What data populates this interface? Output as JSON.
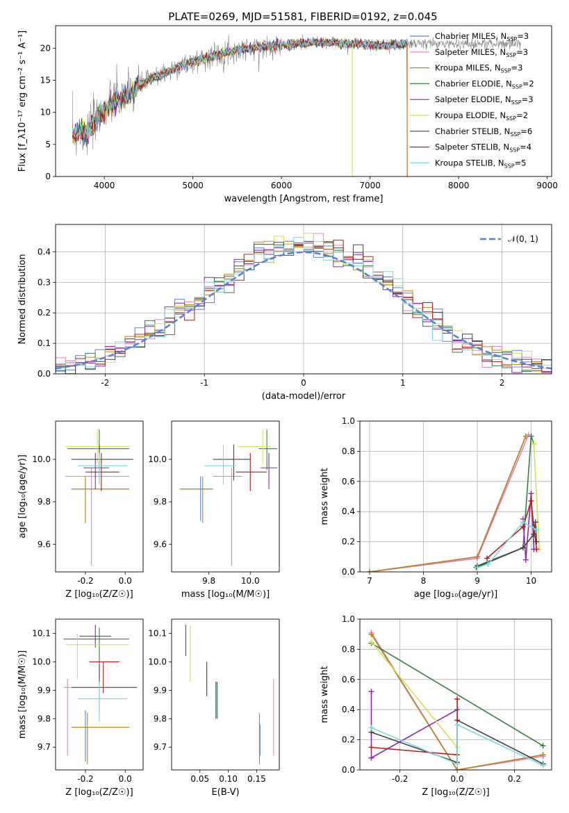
{
  "title": "PLATE=0269, MJD=51581, FIBERID=0192, z=0.045",
  "colors": {
    "chab_miles": "#5b7fd6",
    "salp_miles": "#e77fc4",
    "krou_miles": "#b8871b",
    "chab_elodie": "#3a7d44",
    "salp_elodie": "#8e24aa",
    "krou_elodie": "#d4e157",
    "chab_stelib": "#444444",
    "salp_stelib": "#b71c1c",
    "krou_stelib": "#7fd6dc",
    "spectrum": "#808080",
    "model_accent": "#e07b39"
  },
  "chart_data": [
    {
      "id": "spectrum",
      "type": "line",
      "xlabel": "wavelength [Angstrom, rest frame]",
      "ylabel": "Flux [f_λ10⁻¹⁷ erg cm⁻² s⁻¹ A⁻¹]",
      "xlim": [
        3450,
        9050
      ],
      "ylim": [
        0,
        23.5
      ],
      "xticks": [
        4000,
        5000,
        6000,
        7000,
        8000,
        9000
      ],
      "yticks": [
        0,
        5,
        10,
        15,
        20
      ],
      "grid": false,
      "legend_position": "right",
      "continuum": {
        "x": [
          3650,
          3700,
          3800,
          3900,
          4000,
          4100,
          4200,
          4300,
          4400,
          4500,
          4700,
          4900,
          5100,
          5300,
          5500,
          5700,
          5900,
          6100,
          6300,
          6500,
          6700,
          6900,
          7100,
          7300,
          7420
        ],
        "y": [
          6.5,
          7.0,
          6.5,
          8.5,
          10.5,
          11.5,
          12.3,
          13.0,
          14.2,
          15.0,
          16.2,
          17.4,
          18.3,
          19.0,
          19.7,
          20.0,
          20.4,
          20.6,
          20.8,
          20.9,
          20.8,
          20.6,
          20.4,
          20.5,
          20.7
        ]
      },
      "series": [
        {
          "name": "Chabrier MILES, N_SSP=3",
          "label_main": "Chabrier MILES, N",
          "label_sub": "SSP",
          "label_end": "=3",
          "color_key": "chab_miles"
        },
        {
          "name": "Salpeter MILES, N_SSP=3",
          "label_main": "Salpeter MILES, N",
          "label_sub": "SSP",
          "label_end": "=3",
          "color_key": "salp_miles"
        },
        {
          "name": "Kroupa MILES, N_SSP=3",
          "label_main": "Kroupa MILES, N",
          "label_sub": "SSP",
          "label_end": "=3",
          "color_key": "krou_miles"
        },
        {
          "name": "Chabrier ELODIE, N_SSP=2",
          "label_main": "Chabrier ELODIE, N",
          "label_sub": "SSP",
          "label_end": "=2",
          "color_key": "chab_elodie"
        },
        {
          "name": "Salpeter ELODIE, N_SSP=3",
          "label_main": "Salpeter ELODIE, N",
          "label_sub": "SSP",
          "label_end": "=3",
          "color_key": "salp_elodie"
        },
        {
          "name": "Kroupa ELODIE, N_SSP=2",
          "label_main": "Kroupa ELODIE, N",
          "label_sub": "SSP",
          "label_end": "=2",
          "color_key": "krou_elodie"
        },
        {
          "name": "Chabrier STELIB, N_SSP=6",
          "label_main": "Chabrier STELIB, N",
          "label_sub": "SSP",
          "label_end": "=6",
          "color_key": "chab_stelib"
        },
        {
          "name": "Salpeter STELIB, N_SSP=4",
          "label_main": "Salpeter STELIB, N",
          "label_sub": "SSP",
          "label_end": "=4",
          "color_key": "salp_stelib"
        },
        {
          "name": "Kroupa STELIB, N_SSP=5",
          "label_main": "Kroupa STELIB, N",
          "label_sub": "SSP",
          "label_end": "=5",
          "color_key": "krou_stelib"
        }
      ]
    },
    {
      "id": "residuals",
      "type": "histogram",
      "xlabel": "(data-model)/error",
      "ylabel": "Normed distribution",
      "xlim": [
        -2.5,
        2.5
      ],
      "ylim": [
        0,
        0.49
      ],
      "xticks": [
        -2,
        -1,
        0,
        1,
        2
      ],
      "yticks": [
        0.0,
        0.1,
        0.2,
        0.3,
        0.4
      ],
      "grid": true,
      "legend_position": "top-right",
      "legend": "𝒩(0, 1)",
      "bin_width": 0.1,
      "approx_density_bins": {
        "centers": [
          -2.45,
          -2.35,
          -2.25,
          -2.15,
          -2.05,
          -1.95,
          -1.85,
          -1.75,
          -1.65,
          -1.55,
          -1.45,
          -1.35,
          -1.25,
          -1.15,
          -1.05,
          -0.95,
          -0.85,
          -0.75,
          -0.65,
          -0.55,
          -0.45,
          -0.35,
          -0.25,
          -0.15,
          -0.05,
          0.05,
          0.15,
          0.25,
          0.35,
          0.45,
          0.55,
          0.65,
          0.75,
          0.85,
          0.95,
          1.05,
          1.15,
          1.25,
          1.35,
          1.45,
          1.55,
          1.65,
          1.75,
          1.85,
          1.95,
          2.05,
          2.15,
          2.25,
          2.35,
          2.45
        ],
        "values": [
          0.02,
          0.03,
          0.04,
          0.04,
          0.05,
          0.06,
          0.08,
          0.1,
          0.12,
          0.13,
          0.15,
          0.18,
          0.21,
          0.22,
          0.24,
          0.28,
          0.29,
          0.31,
          0.34,
          0.36,
          0.4,
          0.41,
          0.42,
          0.42,
          0.42,
          0.42,
          0.42,
          0.41,
          0.4,
          0.38,
          0.37,
          0.35,
          0.32,
          0.3,
          0.27,
          0.23,
          0.21,
          0.19,
          0.17,
          0.14,
          0.11,
          0.1,
          0.08,
          0.06,
          0.06,
          0.05,
          0.04,
          0.04,
          0.03,
          0.02
        ]
      }
    },
    {
      "id": "age_vs_Z",
      "type": "errorbar",
      "xlabel": "Z [log₁₀(Z/Z☉)]",
      "ylabel": "age  [log₁₀(age/yr)]",
      "xlim": [
        -0.35,
        0.09
      ],
      "ylim": [
        9.47,
        10.18
      ],
      "xticks": [
        -0.2,
        0.0
      ],
      "yticks": [
        9.6,
        9.8,
        10.0
      ],
      "points": [
        {
          "color_key": "chab_miles",
          "x": -0.2,
          "xlo": -0.27,
          "xhi": 0.02,
          "y": 9.86,
          "ylo": 9.71,
          "yhi": 9.92
        },
        {
          "color_key": "salp_miles",
          "x": -0.17,
          "xlo": -0.3,
          "xhi": 0.02,
          "y": 9.92,
          "ylo": 9.5,
          "yhi": 9.96
        },
        {
          "color_key": "krou_miles",
          "x": -0.2,
          "xlo": -0.27,
          "xhi": 0.02,
          "y": 9.86,
          "ylo": 9.7,
          "yhi": 9.92
        },
        {
          "color_key": "chab_elodie",
          "x": -0.13,
          "xlo": -0.29,
          "xhi": 0.02,
          "y": 10.05,
          "ylo": 9.95,
          "yhi": 10.14
        },
        {
          "color_key": "salp_elodie",
          "x": -0.15,
          "xlo": -0.21,
          "xhi": -0.08,
          "y": 9.96,
          "ylo": 9.86,
          "yhi": 10.03
        },
        {
          "color_key": "krou_elodie",
          "x": -0.14,
          "xlo": -0.3,
          "xhi": 0.02,
          "y": 10.06,
          "ylo": 9.98,
          "yhi": 10.14
        },
        {
          "color_key": "chab_stelib",
          "x": -0.13,
          "xlo": -0.27,
          "xhi": 0.04,
          "y": 10.0,
          "ylo": 9.9,
          "yhi": 10.07
        },
        {
          "color_key": "salp_stelib",
          "x": -0.12,
          "xlo": -0.2,
          "xhi": -0.03,
          "y": 9.94,
          "ylo": 9.85,
          "yhi": 10.03
        },
        {
          "color_key": "krou_stelib",
          "x": -0.13,
          "xlo": -0.24,
          "xhi": 0.01,
          "y": 9.97,
          "ylo": 9.88,
          "yhi": 10.03
        }
      ]
    },
    {
      "id": "age_vs_mass",
      "type": "errorbar",
      "xlabel": "mass [log₁₀(M/M☉)]",
      "ylabel": "",
      "xlim": [
        9.62,
        10.14
      ],
      "ylim": [
        9.47,
        10.18
      ],
      "xticks": [
        9.8,
        10.0
      ],
      "yticks": [
        9.6,
        9.8,
        10.0
      ],
      "points": [
        {
          "color_key": "chab_miles",
          "x": 9.76,
          "xlo": 9.66,
          "xhi": 9.82,
          "y": 9.86,
          "ylo": 9.71,
          "yhi": 9.92
        },
        {
          "color_key": "salp_miles",
          "x": 9.91,
          "xlo": 9.82,
          "xhi": 9.96,
          "y": 9.92,
          "ylo": 9.5,
          "yhi": 9.96
        },
        {
          "color_key": "krou_miles",
          "x": 9.77,
          "xlo": 9.66,
          "xhi": 9.82,
          "y": 9.86,
          "ylo": 9.7,
          "yhi": 9.92
        },
        {
          "color_key": "chab_elodie",
          "x": 10.08,
          "xlo": 10.04,
          "xhi": 10.13,
          "y": 10.05,
          "ylo": 9.95,
          "yhi": 10.14
        },
        {
          "color_key": "salp_elodie",
          "x": 10.09,
          "xlo": 10.05,
          "xhi": 10.13,
          "y": 9.96,
          "ylo": 9.86,
          "yhi": 10.03
        },
        {
          "color_key": "krou_elodie",
          "x": 10.06,
          "xlo": 9.94,
          "xhi": 10.1,
          "y": 10.06,
          "ylo": 9.98,
          "yhi": 10.14
        },
        {
          "color_key": "chab_stelib",
          "x": 9.92,
          "xlo": 9.82,
          "xhi": 10.0,
          "y": 10.0,
          "ylo": 9.9,
          "yhi": 10.07
        },
        {
          "color_key": "salp_stelib",
          "x": 10.0,
          "xlo": 9.93,
          "xhi": 10.08,
          "y": 9.94,
          "ylo": 9.85,
          "yhi": 10.03
        },
        {
          "color_key": "krou_stelib",
          "x": 9.87,
          "xlo": 9.78,
          "xhi": 9.93,
          "y": 9.97,
          "ylo": 9.88,
          "yhi": 10.07
        }
      ]
    },
    {
      "id": "weight_vs_age",
      "type": "line",
      "xlabel": "age  [log₁₀(age/yr)]",
      "ylabel": "mass weight",
      "xlim": [
        6.82,
        10.38
      ],
      "ylim": [
        0,
        1.0
      ],
      "xticks": [
        7,
        8,
        9,
        10
      ],
      "yticks": [
        0.0,
        0.2,
        0.4,
        0.6,
        0.8,
        1.0
      ],
      "grid": true,
      "series": [
        {
          "color_key": "chab_miles",
          "x": [
            7.0,
            9.0,
            9.9
          ],
          "y": [
            0.0,
            0.1,
            0.9
          ]
        },
        {
          "color_key": "salp_miles",
          "x": [
            7.0,
            9.0,
            9.95
          ],
          "y": [
            0.0,
            0.09,
            0.91
          ]
        },
        {
          "color_key": "krou_miles",
          "x": [
            7.0,
            9.0,
            9.9
          ],
          "y": [
            0.0,
            0.1,
            0.9
          ]
        },
        {
          "color_key": "chab_elodie",
          "x": [
            9.0,
            9.85,
            10.0,
            10.05
          ],
          "y": [
            0.04,
            0.16,
            0.9,
            0.85
          ]
        },
        {
          "color_key": "salp_elodie",
          "x": [
            9.85,
            9.9,
            10.0,
            10.05
          ],
          "y": [
            0.35,
            0.08,
            0.52,
            0.15
          ]
        },
        {
          "color_key": "krou_elodie",
          "x": [
            10.05,
            10.15
          ],
          "y": [
            0.85,
            0.15
          ]
        },
        {
          "color_key": "chab_stelib",
          "x": [
            8.98,
            9.85,
            10.05,
            10.08,
            10.1
          ],
          "y": [
            0.03,
            0.16,
            0.25,
            0.33,
            0.2
          ]
        },
        {
          "color_key": "salp_stelib",
          "x": [
            9.18,
            9.85,
            10.0,
            10.05,
            10.1
          ],
          "y": [
            0.09,
            0.3,
            0.47,
            0.3,
            0.15
          ]
        },
        {
          "color_key": "krou_stelib",
          "x": [
            9.0,
            9.2,
            9.85,
            10.0,
            10.1
          ],
          "y": [
            0.03,
            0.05,
            0.33,
            0.3,
            0.28
          ]
        }
      ]
    },
    {
      "id": "mass_vs_Z",
      "type": "errorbar",
      "xlabel": "Z [log₁₀(Z/Z☉)]",
      "ylabel": "mass [log₁₀(M/M☉)]",
      "xlim": [
        -0.35,
        0.09
      ],
      "ylim": [
        9.62,
        10.15
      ],
      "xticks": [
        -0.2,
        0.0
      ],
      "yticks": [
        9.7,
        9.8,
        9.9,
        10.0,
        10.1
      ],
      "points": [
        {
          "color_key": "chab_miles",
          "x": -0.2,
          "xlo": -0.27,
          "xhi": 0.02,
          "y": 9.77,
          "ylo": 9.65,
          "yhi": 9.83
        },
        {
          "color_key": "salp_miles",
          "x": -0.29,
          "xlo": -0.31,
          "xhi": -0.26,
          "y": 9.91,
          "ylo": 9.67,
          "yhi": 9.94
        },
        {
          "color_key": "krou_miles",
          "x": -0.19,
          "xlo": -0.27,
          "xhi": 0.02,
          "y": 9.77,
          "ylo": 9.64,
          "yhi": 9.82
        },
        {
          "color_key": "chab_elodie",
          "x": -0.13,
          "xlo": -0.31,
          "xhi": 0.02,
          "y": 10.08,
          "ylo": 9.94,
          "yhi": 10.12
        },
        {
          "color_key": "salp_elodie",
          "x": -0.15,
          "xlo": -0.23,
          "xhi": -0.07,
          "y": 10.09,
          "ylo": 10.05,
          "yhi": 10.13
        },
        {
          "color_key": "krou_elodie",
          "x": -0.24,
          "xlo": -0.3,
          "xhi": 0.02,
          "y": 10.06,
          "ylo": 9.94,
          "yhi": 10.1
        },
        {
          "color_key": "chab_stelib",
          "x": -0.13,
          "xlo": -0.27,
          "xhi": 0.06,
          "y": 9.91,
          "ylo": 9.82,
          "yhi": 9.99
        },
        {
          "color_key": "salp_stelib",
          "x": -0.11,
          "xlo": -0.18,
          "xhi": -0.03,
          "y": 10.0,
          "ylo": 9.89,
          "yhi": 10.0
        },
        {
          "color_key": "krou_stelib",
          "x": -0.13,
          "xlo": -0.24,
          "xhi": 0.01,
          "y": 9.87,
          "ylo": 9.79,
          "yhi": 9.93
        }
      ]
    },
    {
      "id": "mass_vs_ebv",
      "type": "errorbar",
      "xlabel": "E(B-V)",
      "ylabel": "",
      "xlim": [
        0.0,
        0.19
      ],
      "ylim": [
        9.62,
        10.15
      ],
      "xticks": [
        0.05,
        0.1,
        0.15
      ],
      "yticks": [
        9.7,
        9.8,
        9.9,
        10.0,
        10.1
      ],
      "points": [
        {
          "color_key": "chab_miles",
          "x": 0.156,
          "ylo": 9.67,
          "yhi": 9.78
        },
        {
          "color_key": "salp_miles",
          "x": 0.18,
          "ylo": 9.67,
          "yhi": 9.94
        },
        {
          "color_key": "krou_miles",
          "x": 0.155,
          "ylo": 9.64,
          "yhi": 9.82
        },
        {
          "color_key": "chab_elodie",
          "x": 0.078,
          "ylo": 9.8,
          "yhi": 9.93
        },
        {
          "color_key": "salp_elodie",
          "x": 0.025,
          "ylo": 10.02,
          "yhi": 10.13
        },
        {
          "color_key": "krou_elodie",
          "x": 0.033,
          "ylo": 9.93,
          "yhi": 10.13
        },
        {
          "color_key": "chab_stelib",
          "x": 0.08,
          "ylo": 9.8,
          "yhi": 9.93
        },
        {
          "color_key": "salp_stelib",
          "x": 0.062,
          "ylo": 9.88,
          "yhi": 10.0
        },
        {
          "color_key": "krou_stelib",
          "x": 0.081,
          "ylo": 9.8,
          "yhi": 9.92
        }
      ]
    },
    {
      "id": "weight_vs_Z",
      "type": "line",
      "xlabel": "Z [log₁₀(Z/Z☉)]",
      "ylabel": "mass weight",
      "xlim": [
        -0.34,
        0.33
      ],
      "ylim": [
        0,
        1.0
      ],
      "xticks": [
        -0.2,
        0.0,
        0.2
      ],
      "yticks": [
        0.0,
        0.2,
        0.4,
        0.6,
        0.8,
        1.0
      ],
      "grid": true,
      "series": [
        {
          "color_key": "chab_miles",
          "x": [
            -0.3,
            0.0,
            0.3
          ],
          "y": [
            0.9,
            0.0,
            0.1
          ]
        },
        {
          "color_key": "salp_miles",
          "x": [
            -0.3,
            0.0,
            0.3
          ],
          "y": [
            0.91,
            0.0,
            0.09
          ]
        },
        {
          "color_key": "krou_miles",
          "x": [
            -0.3,
            0.0,
            0.3
          ],
          "y": [
            0.9,
            0.0,
            0.1
          ]
        },
        {
          "color_key": "chab_elodie",
          "x": [
            -0.3,
            0.3
          ],
          "y": [
            0.84,
            0.16
          ]
        },
        {
          "color_key": "salp_elodie",
          "x": [
            -0.3,
            -0.3,
            0.0
          ],
          "y": [
            0.52,
            0.08,
            0.4
          ]
        },
        {
          "color_key": "krou_elodie",
          "x": [
            -0.3,
            0.0
          ],
          "y": [
            0.85,
            0.15
          ]
        },
        {
          "color_key": "chab_stelib",
          "x": [
            -0.3,
            0.0,
            0.0,
            0.3
          ],
          "y": [
            0.25,
            0.05,
            0.33,
            0.04
          ]
        },
        {
          "color_key": "salp_stelib",
          "x": [
            -0.3,
            0.0,
            0.0
          ],
          "y": [
            0.15,
            0.1,
            0.47
          ]
        },
        {
          "color_key": "krou_stelib",
          "x": [
            -0.3,
            0.0,
            0.0,
            0.3
          ],
          "y": [
            0.28,
            0.04,
            0.3,
            0.03
          ]
        }
      ]
    }
  ]
}
